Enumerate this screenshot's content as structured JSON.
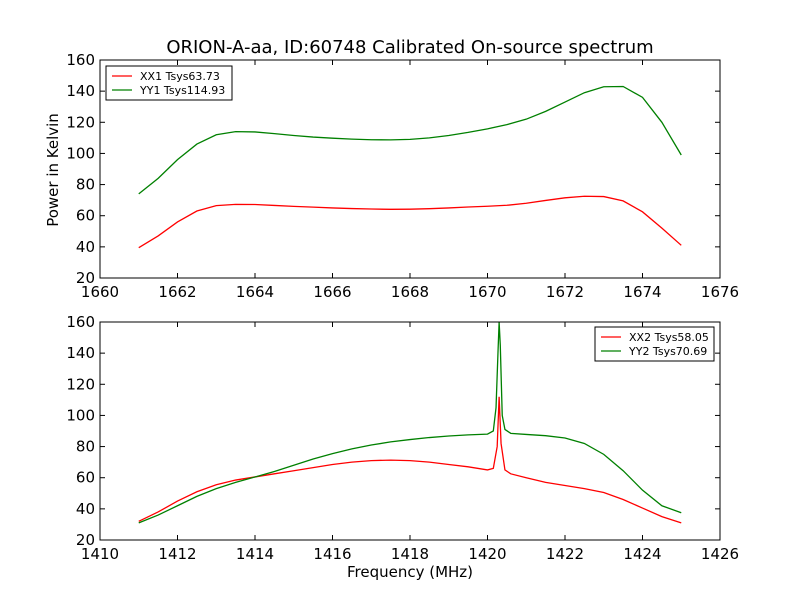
{
  "figure": {
    "title": "ORION-A-aa, ID:60748 Calibrated On-source spectrum",
    "ylabel": "Power in Kelvin",
    "xlabel": "Frequency (MHz)"
  },
  "chart_data": [
    {
      "type": "line",
      "title": "ORION-A-aa, ID:60748 Calibrated On-source spectrum",
      "ylabel": "Power in Kelvin",
      "xlabel": "",
      "xlim": [
        1660,
        1676
      ],
      "ylim": [
        20,
        160
      ],
      "xticks": [
        1660,
        1662,
        1664,
        1666,
        1668,
        1670,
        1672,
        1674,
        1676
      ],
      "yticks": [
        20,
        40,
        60,
        80,
        100,
        120,
        140,
        160
      ],
      "legend": "top-left",
      "grid": false,
      "series": [
        {
          "name": "XX1 Tsys63.73",
          "color": "#ff0000",
          "x": [
            1661.0,
            1661.5,
            1662.0,
            1662.5,
            1663.0,
            1663.5,
            1664.0,
            1664.5,
            1665.0,
            1665.5,
            1666.0,
            1666.5,
            1667.0,
            1667.5,
            1668.0,
            1668.5,
            1669.0,
            1669.5,
            1670.0,
            1670.5,
            1671.0,
            1671.5,
            1672.0,
            1672.5,
            1673.0,
            1673.5,
            1674.0,
            1674.5,
            1675.0
          ],
          "y": [
            39.5,
            47,
            56,
            63,
            66.5,
            67.3,
            67.2,
            66.6,
            66.0,
            65.5,
            65.0,
            64.6,
            64.3,
            64.1,
            64.2,
            64.5,
            65.0,
            65.6,
            66.1,
            66.7,
            68.0,
            69.8,
            71.5,
            72.5,
            72.3,
            69.5,
            62.5,
            52,
            41
          ]
        },
        {
          "name": "YY1 Tsys114.93",
          "color": "#008000",
          "x": [
            1661.0,
            1661.5,
            1662.0,
            1662.5,
            1663.0,
            1663.5,
            1664.0,
            1664.5,
            1665.0,
            1665.5,
            1666.0,
            1666.5,
            1667.0,
            1667.5,
            1668.0,
            1668.5,
            1669.0,
            1669.5,
            1670.0,
            1670.5,
            1671.0,
            1671.5,
            1672.0,
            1672.5,
            1673.0,
            1673.5,
            1674.0,
            1674.5,
            1675.0
          ],
          "y": [
            74,
            84,
            96,
            106,
            112,
            114,
            113.8,
            112.7,
            111.5,
            110.5,
            109.8,
            109.2,
            108.8,
            108.7,
            109.0,
            110.0,
            111.5,
            113.5,
            115.8,
            118.5,
            122.0,
            127.0,
            133.0,
            139.0,
            142.8,
            143.0,
            136.0,
            120.0,
            99.0
          ]
        }
      ]
    },
    {
      "type": "line",
      "title": "",
      "xlabel": "Frequency (MHz)",
      "ylabel": "",
      "xlim": [
        1410,
        1426
      ],
      "ylim": [
        20,
        160
      ],
      "xticks": [
        1410,
        1412,
        1414,
        1416,
        1418,
        1420,
        1422,
        1424,
        1426
      ],
      "yticks": [
        20,
        40,
        60,
        80,
        100,
        120,
        140,
        160
      ],
      "legend": "top-right",
      "grid": false,
      "series": [
        {
          "name": "XX2 Tsys58.05",
          "color": "#ff0000",
          "x": [
            1411.0,
            1411.5,
            1412.0,
            1412.5,
            1413.0,
            1413.5,
            1414.0,
            1414.5,
            1415.0,
            1415.5,
            1416.0,
            1416.5,
            1417.0,
            1417.5,
            1418.0,
            1418.5,
            1419.0,
            1419.5,
            1420.0,
            1420.15,
            1420.25,
            1420.3,
            1420.35,
            1420.45,
            1420.6,
            1421.0,
            1421.5,
            1422.0,
            1422.5,
            1423.0,
            1423.5,
            1424.0,
            1424.5,
            1425.0
          ],
          "y": [
            32,
            38,
            45,
            51,
            55.5,
            58.5,
            60.5,
            62.5,
            64.5,
            66.5,
            68.5,
            70,
            71,
            71.3,
            71,
            70,
            68.5,
            67,
            65,
            66,
            80,
            112,
            82,
            65,
            62.5,
            60,
            57,
            55,
            53,
            50.5,
            46,
            40.5,
            35,
            31
          ]
        },
        {
          "name": "YY2 Tsys70.69",
          "color": "#008000",
          "x": [
            1411.0,
            1411.5,
            1412.0,
            1412.5,
            1413.0,
            1413.5,
            1414.0,
            1414.5,
            1415.0,
            1415.5,
            1416.0,
            1416.5,
            1417.0,
            1417.5,
            1418.0,
            1418.5,
            1419.0,
            1419.5,
            1420.0,
            1420.15,
            1420.22,
            1420.27,
            1420.3,
            1420.33,
            1420.38,
            1420.45,
            1420.6,
            1421.0,
            1421.5,
            1422.0,
            1422.5,
            1423.0,
            1423.5,
            1424.0,
            1424.5,
            1425.0
          ],
          "y": [
            31,
            36,
            42,
            48,
            53,
            57,
            60.5,
            64,
            68,
            72,
            75.5,
            78.5,
            81,
            83,
            84.5,
            85.8,
            86.8,
            87.5,
            88,
            90,
            105,
            140,
            160,
            145,
            100,
            91,
            88.5,
            87.8,
            87,
            85.5,
            82,
            75,
            64.5,
            52,
            42,
            37.5
          ]
        }
      ]
    }
  ]
}
